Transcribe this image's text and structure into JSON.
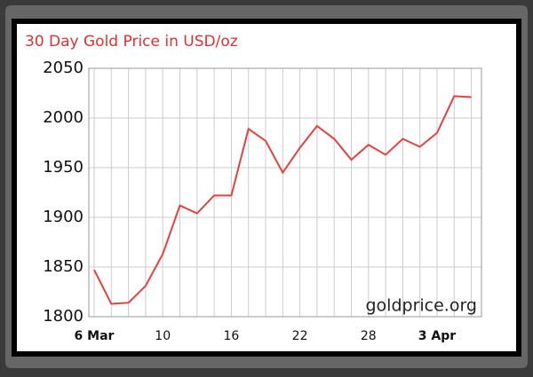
{
  "chart_data": {
    "type": "line",
    "title": "30 Day Gold Price in USD/oz",
    "annotation": "goldprice.org",
    "categories": [
      "6 Mar",
      null,
      null,
      null,
      "10",
      null,
      null,
      null,
      "16",
      null,
      null,
      null,
      "22",
      null,
      null,
      null,
      "28",
      null,
      null,
      null,
      "3 Apr",
      null,
      null
    ],
    "series": [
      {
        "name": "Gold",
        "color": "#e84040",
        "values": [
          1847,
          1813,
          1814,
          1831,
          1863,
          1912,
          1904,
          1922,
          1922,
          1989,
          1977,
          1945,
          1970,
          1992,
          1979,
          1958,
          1973,
          1963,
          1979,
          1971,
          1985,
          2022,
          2021
        ]
      }
    ],
    "ylim": [
      1800,
      2050
    ],
    "yticks": [
      1800,
      1850,
      1900,
      1950,
      2000,
      2050
    ],
    "grid": true
  }
}
